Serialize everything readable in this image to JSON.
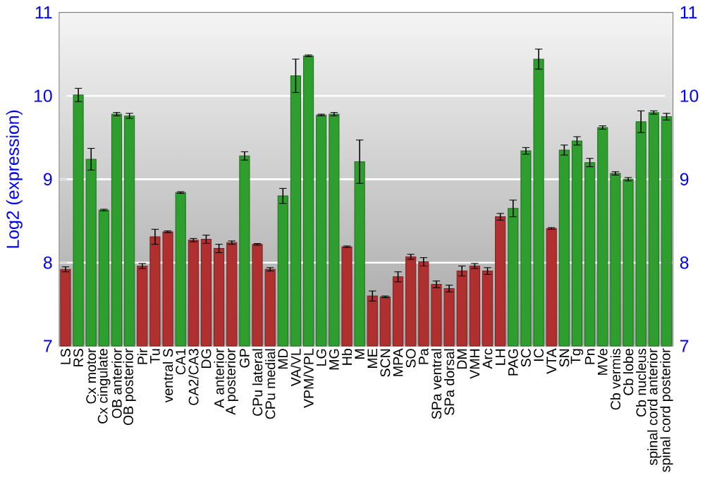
{
  "chart_data": {
    "type": "bar",
    "ylabel": "Log2 (expression)",
    "categories": [
      "LS",
      "RS",
      "Cx motor",
      "Cx cingulate",
      "OB anterior",
      "OB posterior",
      "Pir",
      "Tu",
      "ventral S",
      "CA1",
      "CA2/CA3",
      "DG",
      "A anterior",
      "A posterior",
      "GP",
      "CPu lateral",
      "CPu medial",
      "MD",
      "VA/VL",
      "VPM/VPL",
      "LG",
      "MG",
      "Hb",
      "M",
      "ME",
      "SCN",
      "MPA",
      "SO",
      "Pa",
      "SPa ventral",
      "SPa dorsal",
      "DM",
      "VMH",
      "Arc",
      "LH",
      "PAG",
      "SC",
      "IC",
      "VTA",
      "SN",
      "Tg",
      "Pn",
      "MVe",
      "Cb vermis",
      "Cb lobe",
      "Cb nucleus",
      "spinal cord anterior",
      "spinal cord posterior"
    ],
    "values": [
      7.92,
      10.01,
      9.24,
      8.63,
      9.78,
      9.76,
      7.96,
      8.31,
      8.37,
      8.84,
      8.27,
      8.28,
      8.17,
      8.24,
      9.28,
      8.22,
      7.92,
      8.8,
      10.24,
      10.48,
      9.77,
      9.78,
      8.19,
      9.21,
      7.6,
      7.59,
      7.83,
      8.07,
      8.01,
      7.74,
      7.69,
      7.9,
      7.96,
      7.9,
      8.55,
      8.65,
      9.34,
      10.44,
      8.41,
      9.35,
      9.46,
      9.2,
      9.62,
      9.07,
      9.0,
      9.69,
      9.8,
      9.75
    ],
    "errors": [
      0.03,
      0.08,
      0.13,
      0.01,
      0.02,
      0.03,
      0.03,
      0.09,
      0.01,
      0.01,
      0.02,
      0.05,
      0.05,
      0.02,
      0.05,
      0.01,
      0.02,
      0.09,
      0.2,
      0.01,
      0.01,
      0.02,
      0.01,
      0.26,
      0.06,
      0.01,
      0.06,
      0.03,
      0.05,
      0.04,
      0.04,
      0.06,
      0.03,
      0.04,
      0.04,
      0.1,
      0.04,
      0.12,
      0.01,
      0.06,
      0.05,
      0.05,
      0.02,
      0.02,
      0.02,
      0.13,
      0.02,
      0.04
    ],
    "colors": [
      "#b03030",
      "#2e9e2e",
      "#2e9e2e",
      "#2e9e2e",
      "#2e9e2e",
      "#2e9e2e",
      "#b03030",
      "#b03030",
      "#b03030",
      "#2e9e2e",
      "#b03030",
      "#b03030",
      "#b03030",
      "#b03030",
      "#2e9e2e",
      "#b03030",
      "#b03030",
      "#2e9e2e",
      "#2e9e2e",
      "#2e9e2e",
      "#2e9e2e",
      "#2e9e2e",
      "#b03030",
      "#2e9e2e",
      "#b03030",
      "#b03030",
      "#b03030",
      "#b03030",
      "#b03030",
      "#b03030",
      "#b03030",
      "#b03030",
      "#b03030",
      "#b03030",
      "#b03030",
      "#2e9e2e",
      "#2e9e2e",
      "#2e9e2e",
      "#b03030",
      "#2e9e2e",
      "#2e9e2e",
      "#2e9e2e",
      "#2e9e2e",
      "#2e9e2e",
      "#2e9e2e",
      "#2e9e2e",
      "#2e9e2e",
      "#2e9e2e"
    ],
    "ylim": [
      7,
      11
    ],
    "yticks": [
      7,
      8,
      9,
      10,
      11
    ],
    "y2lim": [
      7,
      11
    ],
    "y2ticks": [
      7,
      8,
      9,
      10,
      11
    ],
    "grid": "y"
  }
}
